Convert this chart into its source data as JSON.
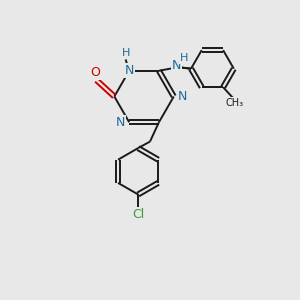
{
  "bg_color": "#e8e8e8",
  "bond_color": "#1a1a1a",
  "N_color": "#1a6b9a",
  "O_color": "#cc0000",
  "Cl_color": "#3a9a3a",
  "figsize": [
    3.0,
    3.0
  ],
  "dpi": 100,
  "xlim": [
    0,
    10
  ],
  "ylim": [
    0,
    10
  ]
}
